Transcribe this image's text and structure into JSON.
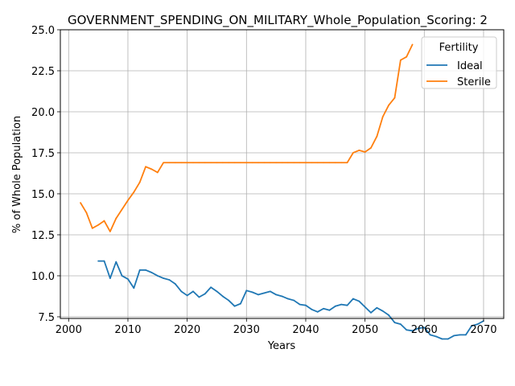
{
  "chart_data": {
    "type": "line",
    "title": "GOVERNMENT_SPENDING_ON_MILITARY_Whole_Population_Scoring: 2",
    "xlabel": "Years",
    "ylabel": "% of Whole Population",
    "xlim": [
      1998.6,
      2073.4
    ],
    "ylim": [
      7.4,
      25.0
    ],
    "xticks": [
      2000,
      2010,
      2020,
      2030,
      2040,
      2050,
      2060,
      2070
    ],
    "yticks": [
      7.5,
      10.0,
      12.5,
      15.0,
      17.5,
      20.0,
      22.5,
      25.0
    ],
    "xtick_labels": [
      "2000",
      "2010",
      "2020",
      "2030",
      "2040",
      "2050",
      "2060",
      "2070"
    ],
    "ytick_labels": [
      "7.5",
      "10.0",
      "12.5",
      "15.0",
      "17.5",
      "20.0",
      "22.5",
      "25.0"
    ],
    "grid": true,
    "legend": {
      "title": "Fertility",
      "placement": "top-right"
    },
    "series": [
      {
        "name": "Ideal",
        "color": "#1f77b4",
        "x": [
          2005,
          2006,
          2007,
          2008,
          2009,
          2010,
          2011,
          2012,
          2013,
          2014,
          2015,
          2016,
          2017,
          2018,
          2019,
          2020,
          2021,
          2022,
          2023,
          2024,
          2025,
          2026,
          2027,
          2028,
          2029,
          2030,
          2031,
          2032,
          2033,
          2034,
          2035,
          2036,
          2037,
          2038,
          2039,
          2040,
          2041,
          2042,
          2043,
          2044,
          2045,
          2046,
          2047,
          2048,
          2049,
          2050,
          2051,
          2052,
          2053,
          2054,
          2055,
          2056,
          2057,
          2058,
          2059,
          2060,
          2061,
          2062,
          2063,
          2064,
          2065,
          2066,
          2067,
          2068,
          2069,
          2070
        ],
        "y": [
          10.9,
          10.9,
          9.85,
          10.85,
          10.0,
          9.8,
          9.25,
          10.35,
          10.35,
          10.2,
          10.0,
          9.85,
          9.75,
          9.5,
          9.05,
          8.8,
          9.05,
          8.7,
          8.9,
          9.3,
          9.05,
          8.75,
          8.5,
          8.15,
          8.3,
          9.1,
          9.0,
          8.85,
          8.95,
          9.05,
          8.85,
          8.75,
          8.6,
          8.5,
          8.25,
          8.2,
          7.95,
          7.8,
          8.0,
          7.9,
          8.15,
          8.25,
          8.2,
          8.6,
          8.45,
          8.1,
          7.75,
          8.05,
          7.85,
          7.6,
          7.15,
          7.05,
          6.7,
          6.65,
          6.8,
          6.85,
          6.4,
          6.3,
          6.15,
          6.15,
          6.35,
          6.4,
          6.4,
          6.95,
          7.05,
          7.25
        ]
      },
      {
        "name": "Sterile",
        "color": "#ff7f0e",
        "x": [
          2002,
          2003,
          2004,
          2005,
          2006,
          2007,
          2008,
          2009,
          2010,
          2011,
          2012,
          2013,
          2014,
          2015,
          2016,
          2017,
          2018,
          2019,
          2020,
          2021,
          2022,
          2023,
          2024,
          2025,
          2026,
          2027,
          2028,
          2029,
          2030,
          2031,
          2032,
          2033,
          2034,
          2035,
          2036,
          2037,
          2038,
          2039,
          2040,
          2041,
          2042,
          2043,
          2044,
          2045,
          2046,
          2047,
          2048,
          2049,
          2050,
          2051,
          2052,
          2053,
          2054,
          2055,
          2056,
          2057,
          2058
        ],
        "y": [
          14.45,
          13.85,
          12.9,
          13.1,
          13.35,
          12.7,
          13.5,
          14.05,
          14.6,
          15.1,
          15.7,
          16.65,
          16.5,
          16.3,
          16.9,
          16.9,
          16.9,
          16.9,
          16.9,
          16.9,
          16.9,
          16.9,
          16.9,
          16.9,
          16.9,
          16.9,
          16.9,
          16.9,
          16.9,
          16.9,
          16.9,
          16.9,
          16.9,
          16.9,
          16.9,
          16.9,
          16.9,
          16.9,
          16.9,
          16.9,
          16.9,
          16.9,
          16.9,
          16.9,
          16.9,
          16.9,
          17.5,
          17.65,
          17.55,
          17.8,
          18.5,
          19.7,
          20.4,
          20.85,
          23.15,
          23.35,
          24.1
        ]
      }
    ]
  }
}
